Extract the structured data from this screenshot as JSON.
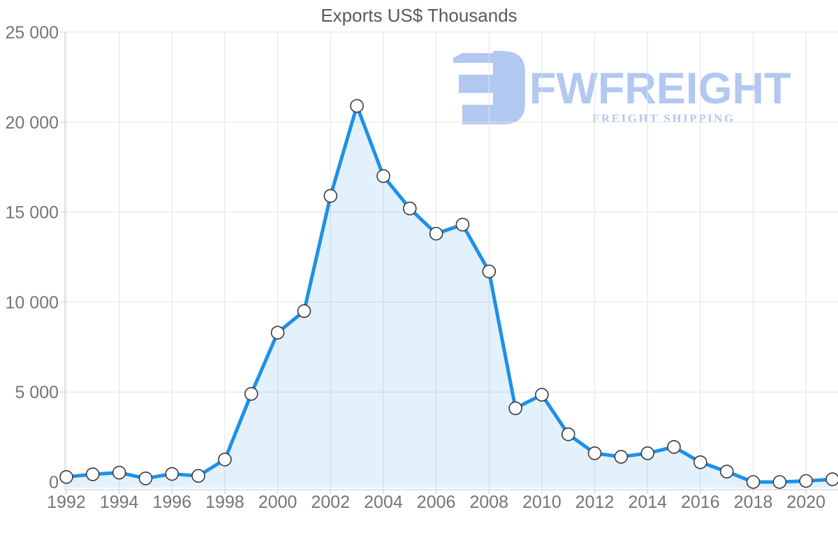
{
  "title": "Exports US$ Thousands",
  "watermark": {
    "brand": "FWFREIGHT",
    "tagline": "FREIGHT SHIPPING",
    "color": "#aec6f0"
  },
  "chart_data": {
    "type": "area",
    "title": "Exports US$ Thousands",
    "series_name": "Exports US$ Thousands",
    "x": [
      1992,
      1993,
      1994,
      1995,
      1996,
      1997,
      1998,
      1999,
      2000,
      2001,
      2002,
      2003,
      2004,
      2005,
      2006,
      2007,
      2008,
      2009,
      2010,
      2011,
      2012,
      2013,
      2014,
      2015,
      2016,
      2017,
      2018,
      2019,
      2020,
      2021
    ],
    "values": [
      280,
      430,
      520,
      200,
      450,
      340,
      1250,
      4900,
      8300,
      9500,
      15900,
      20900,
      17000,
      15200,
      13800,
      14300,
      11700,
      4100,
      4850,
      2650,
      1600,
      1400,
      1600,
      1950,
      1100,
      580,
      0,
      0,
      60,
      150
    ],
    "ylim": [
      0,
      25000
    ],
    "x_tick_labels": [
      "1992",
      "1994",
      "1996",
      "1998",
      "2000",
      "2002",
      "2004",
      "2006",
      "2008",
      "2010",
      "2012",
      "2014",
      "2016",
      "2018",
      "2020"
    ],
    "y_tick_labels": [
      "0",
      "5 000",
      "10 000",
      "15 000",
      "20 000",
      "25 000"
    ],
    "grid": true,
    "legend": "none",
    "line_color": "#1e90e8",
    "fill_color": "rgba(30,144,232,0.13)",
    "marker_fill": "#ffffff",
    "marker_stroke": "#3a3a3a",
    "gridline_color": "#e4e4e4",
    "axis_line_color": "#c9c9c9",
    "tick_text_color": "#757575"
  }
}
